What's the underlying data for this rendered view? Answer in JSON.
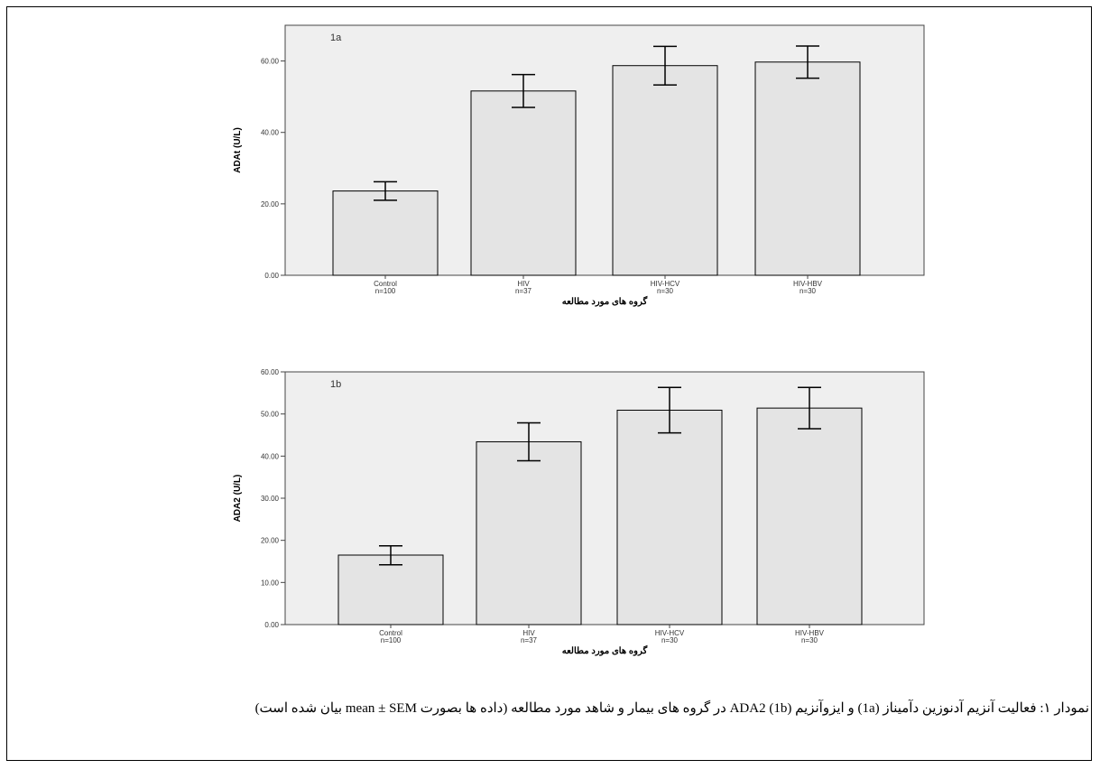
{
  "chart_data": [
    {
      "type": "bar",
      "panel_label": "1a",
      "ylabel": "ADAt (U/L)",
      "xlabel": "گروه های مورد مطالعه",
      "ylim": [
        0,
        70
      ],
      "yticks": [
        "0.00",
        "20.00",
        "40.00",
        "60.00"
      ],
      "tick_values": [
        0,
        20,
        40,
        60
      ],
      "categories": [
        "Control",
        "HIV",
        "HIV-HCV",
        "HIV-HBV"
      ],
      "category_n": [
        "n=100",
        "n=37",
        "n=30",
        "n=30"
      ],
      "values": [
        23.6,
        51.6,
        58.7,
        59.7
      ],
      "error_low": [
        21.0,
        47.0,
        53.3,
        55.2
      ],
      "error_high": [
        26.2,
        56.2,
        64.1,
        64.2
      ]
    },
    {
      "type": "bar",
      "panel_label": "1b",
      "ylabel": "ADA2 (U/L)",
      "xlabel": "گروه های مورد مطالعه",
      "ylim": [
        0,
        60
      ],
      "yticks": [
        "0.00",
        "10.00",
        "20.00",
        "30.00",
        "40.00",
        "50.00",
        "60.00"
      ],
      "tick_values": [
        0,
        10,
        20,
        30,
        40,
        50,
        60
      ],
      "categories": [
        "Control",
        "HIV",
        "HIV-HCV",
        "HIV-HBV"
      ],
      "category_n": [
        "n=100",
        "n=37",
        "n=30",
        "n=30"
      ],
      "values": [
        16.5,
        43.4,
        50.9,
        51.4
      ],
      "error_low": [
        14.2,
        38.9,
        45.5,
        46.5
      ],
      "error_high": [
        18.7,
        47.9,
        56.3,
        56.3
      ]
    }
  ],
  "caption": "نمودار ۱: فعالیت آنزیم آدنوزین دآمیناز (1a) و ایزوآنزیم ADA2 (1b) در گروه های بیمار و شاهد مورد مطالعه (داده ها بصورت mean ± SEM بیان شده است)",
  "colors": {
    "plot_bg": "#efefef",
    "bar_fill": "#e4e4e4",
    "stroke": "#000000",
    "axis": "#444444"
  }
}
